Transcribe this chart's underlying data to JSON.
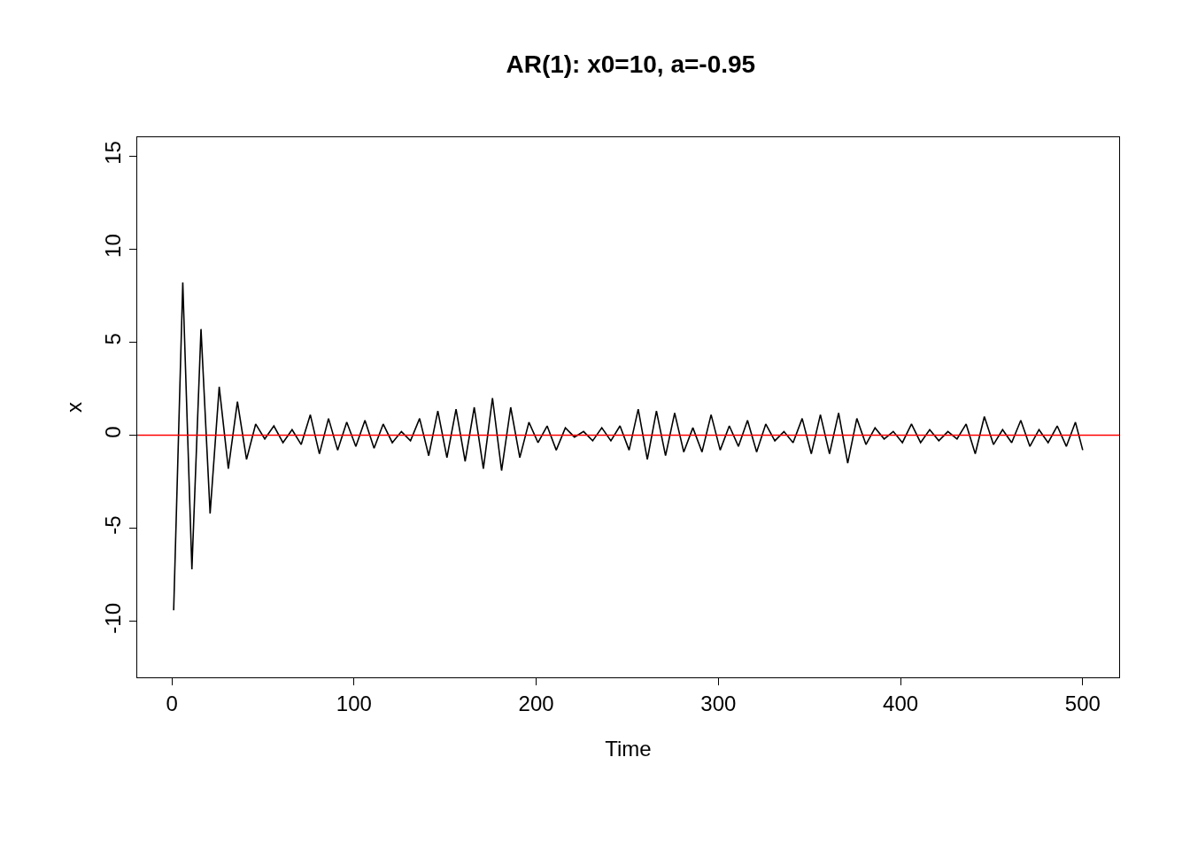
{
  "chart_data": {
    "type": "line",
    "title": "AR(1): x0=10, a=-0.95",
    "xlabel": "Time",
    "ylabel": "x",
    "xlim": [
      -19,
      520
    ],
    "ylim": [
      -13,
      16
    ],
    "xticks": [
      0,
      100,
      200,
      300,
      400,
      500
    ],
    "yticks": [
      -10,
      -5,
      0,
      5,
      10,
      15
    ],
    "grid": false,
    "marker": "none",
    "line_style": "solid",
    "ref_lines": [
      {
        "axis": "y",
        "value": 0,
        "color": "#ff0000"
      }
    ],
    "series": [
      {
        "color": "#000000",
        "x": [
          1,
          6,
          11,
          16,
          21,
          26,
          31,
          36,
          41,
          46,
          51,
          56,
          61,
          66,
          71,
          76,
          81,
          86,
          91,
          96,
          101,
          106,
          111,
          116,
          121,
          126,
          131,
          136,
          141,
          146,
          151,
          156,
          161,
          166,
          171,
          176,
          181,
          186,
          191,
          196,
          201,
          206,
          211,
          216,
          221,
          226,
          231,
          236,
          241,
          246,
          251,
          256,
          261,
          266,
          271,
          276,
          281,
          286,
          291,
          296,
          301,
          306,
          311,
          316,
          321,
          326,
          331,
          336,
          341,
          346,
          351,
          356,
          361,
          366,
          371,
          376,
          381,
          386,
          391,
          396,
          401,
          406,
          411,
          416,
          421,
          426,
          431,
          436,
          441,
          446,
          451,
          456,
          461,
          466,
          471,
          476,
          481,
          486,
          491,
          496,
          500
        ],
        "values": [
          -9.4,
          8.2,
          -7.2,
          5.7,
          -4.2,
          2.6,
          -1.8,
          1.8,
          -1.3,
          0.6,
          -0.2,
          0.5,
          -0.4,
          0.3,
          -0.5,
          1.1,
          -1.0,
          0.9,
          -0.8,
          0.7,
          -0.6,
          0.8,
          -0.7,
          0.6,
          -0.4,
          0.2,
          -0.3,
          0.9,
          -1.1,
          1.3,
          -1.2,
          1.4,
          -1.4,
          1.5,
          -1.8,
          2.0,
          -1.9,
          1.5,
          -1.2,
          0.7,
          -0.4,
          0.5,
          -0.8,
          0.4,
          -0.1,
          0.2,
          -0.3,
          0.4,
          -0.3,
          0.5,
          -0.8,
          1.4,
          -1.3,
          1.3,
          -1.1,
          1.2,
          -0.9,
          0.4,
          -0.9,
          1.1,
          -0.8,
          0.5,
          -0.6,
          0.8,
          -0.9,
          0.6,
          -0.3,
          0.2,
          -0.4,
          0.9,
          -1.0,
          1.1,
          -1.0,
          1.2,
          -1.5,
          0.9,
          -0.5,
          0.4,
          -0.2,
          0.2,
          -0.4,
          0.6,
          -0.4,
          0.3,
          -0.3,
          0.2,
          -0.2,
          0.6,
          -1.0,
          1.0,
          -0.5,
          0.3,
          -0.4,
          0.8,
          -0.6,
          0.3,
          -0.4,
          0.5,
          -0.6,
          0.7,
          -0.8
        ]
      }
    ]
  }
}
